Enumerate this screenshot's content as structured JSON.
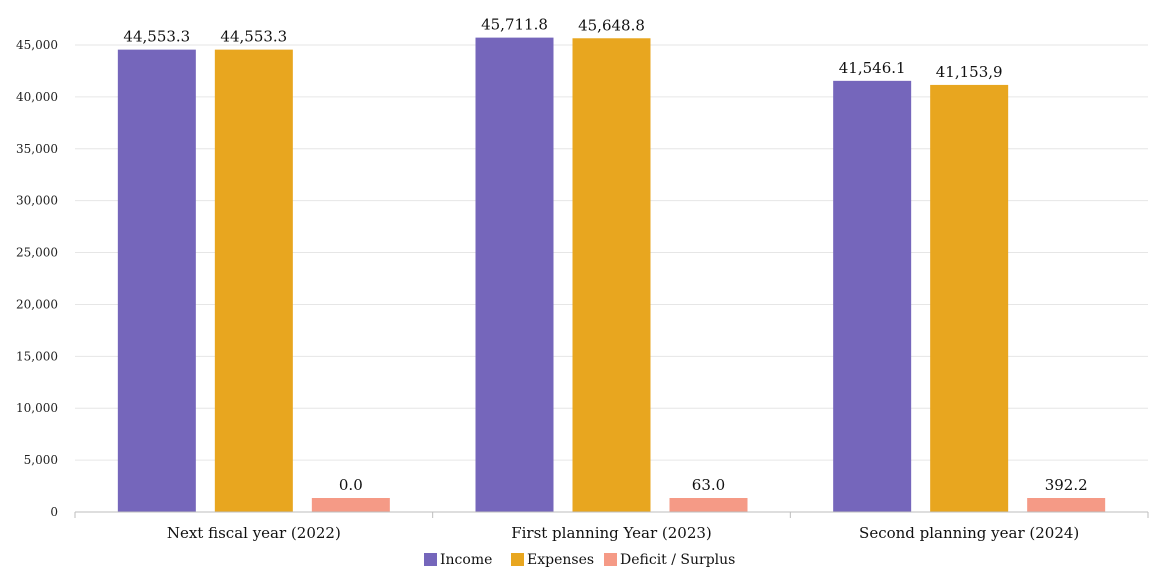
{
  "chart_data": {
    "type": "bar",
    "categories": [
      "Next fiscal year (2022)",
      "First planning Year (2023)",
      "Second planning year (2024)"
    ],
    "series": [
      {
        "name": "Income",
        "color": "#7566BB",
        "values": [
          44553.3,
          45711.8,
          41546.1
        ],
        "labels": [
          "44,553.3",
          "45,711.8",
          "41,546.1"
        ]
      },
      {
        "name": "Expenses",
        "color": "#E8A61F",
        "values": [
          44553.3,
          45648.8,
          41153.9
        ],
        "labels": [
          "44,553.3",
          "45,648.8",
          "41,153,9"
        ]
      },
      {
        "name": "Deficit / Surplus",
        "color": "#F59A86",
        "values": [
          0.0,
          63.0,
          392.2
        ],
        "labels": [
          "0.0",
          "63.0",
          "392.2"
        ]
      }
    ],
    "ylim": [
      0,
      45000
    ],
    "yticks": [
      0,
      5000,
      10000,
      15000,
      20000,
      25000,
      30000,
      35000,
      40000,
      45000
    ],
    "ytick_labels": [
      "0",
      "5,000",
      "10,000",
      "15,000",
      "20,000",
      "25,000",
      "30,000",
      "35,000",
      "40,000",
      "45,000"
    ],
    "grid": true,
    "legend": "bottom-center"
  }
}
